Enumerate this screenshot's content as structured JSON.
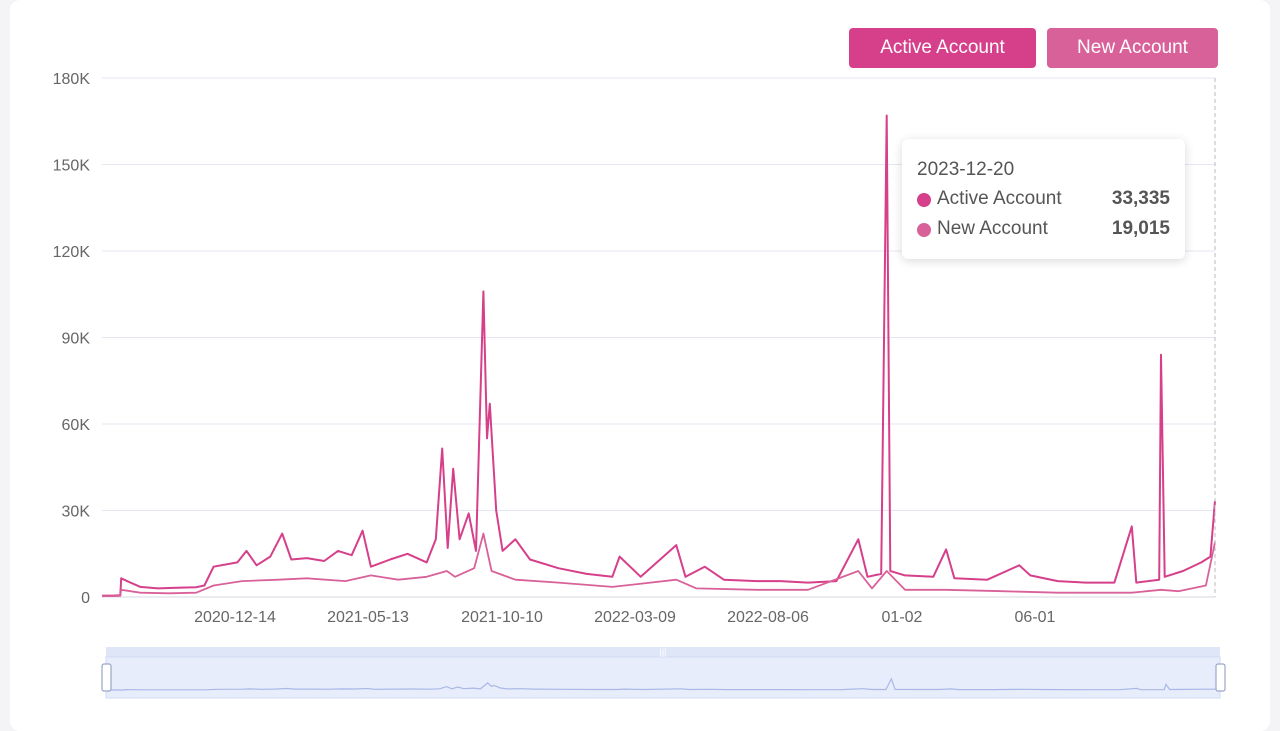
{
  "legend": {
    "active_label": "Active Account",
    "new_label": "New Account"
  },
  "colors": {
    "active": "#d63f8a",
    "new": "#d9619a",
    "grid": "#e4e6f0",
    "axis_text": "#666666",
    "zoom_fill": "#e3e9f9",
    "zoom_line": "#a9b8e8"
  },
  "tooltip": {
    "date": "2023-12-20",
    "active_label": "Active Account",
    "active_value": "33,335",
    "new_label": "New Account",
    "new_value": "19,015"
  },
  "chart_data": {
    "type": "line",
    "title": "",
    "xlabel": "",
    "ylabel": "",
    "ylim": [
      0,
      180000
    ],
    "y_ticks": [
      "0",
      "30K",
      "60K",
      "90K",
      "120K",
      "150K",
      "180K"
    ],
    "x_ticks": [
      "2020-12-14",
      "2021-05-13",
      "2021-10-10",
      "2022-03-09",
      "2022-08-06",
      "01-02",
      "06-01"
    ],
    "x_range": [
      "2020-08-20",
      "2023-12-20"
    ],
    "grid": true,
    "legend_position": "top-right",
    "series": [
      {
        "name": "Active Account",
        "color": "#d63f8a",
        "points": [
          [
            "2020-08-20",
            500
          ],
          [
            "2020-09-01",
            500
          ],
          [
            "2020-09-09",
            600
          ],
          [
            "2020-09-10",
            6500
          ],
          [
            "2020-09-20",
            5000
          ],
          [
            "2020-10-01",
            3500
          ],
          [
            "2020-10-20",
            3000
          ],
          [
            "2020-11-10",
            3200
          ],
          [
            "2020-12-01",
            3400
          ],
          [
            "2020-12-10",
            4000
          ],
          [
            "2020-12-20",
            10500
          ],
          [
            "2021-01-15",
            12000
          ],
          [
            "2021-01-25",
            16000
          ],
          [
            "2021-02-05",
            11000
          ],
          [
            "2021-02-20",
            14000
          ],
          [
            "2021-03-05",
            22000
          ],
          [
            "2021-03-15",
            13000
          ],
          [
            "2021-04-01",
            13500
          ],
          [
            "2021-04-20",
            12500
          ],
          [
            "2021-05-05",
            16000
          ],
          [
            "2021-05-20",
            14500
          ],
          [
            "2021-06-01",
            23000
          ],
          [
            "2021-06-10",
            10500
          ],
          [
            "2021-07-01",
            13000
          ],
          [
            "2021-07-20",
            15000
          ],
          [
            "2021-08-10",
            12000
          ],
          [
            "2021-08-20",
            20000
          ],
          [
            "2021-08-27",
            51500
          ],
          [
            "2021-09-02",
            17000
          ],
          [
            "2021-09-08",
            44500
          ],
          [
            "2021-09-15",
            20000
          ],
          [
            "2021-09-25",
            29000
          ],
          [
            "2021-10-03",
            16000
          ],
          [
            "2021-10-11",
            106000
          ],
          [
            "2021-10-15",
            55000
          ],
          [
            "2021-10-18",
            67000
          ],
          [
            "2021-10-25",
            30000
          ],
          [
            "2021-11-01",
            16000
          ],
          [
            "2021-11-15",
            20000
          ],
          [
            "2021-12-01",
            13000
          ],
          [
            "2022-01-01",
            10000
          ],
          [
            "2022-02-01",
            8000
          ],
          [
            "2022-03-01",
            7000
          ],
          [
            "2022-03-09",
            14000
          ],
          [
            "2022-04-01",
            7000
          ],
          [
            "2022-05-10",
            18000
          ],
          [
            "2022-05-20",
            7000
          ],
          [
            "2022-06-10",
            10500
          ],
          [
            "2022-07-01",
            6000
          ],
          [
            "2022-08-06",
            5500
          ],
          [
            "2022-09-01",
            5500
          ],
          [
            "2022-10-01",
            5000
          ],
          [
            "2022-11-01",
            5500
          ],
          [
            "2022-11-25",
            20000
          ],
          [
            "2022-12-05",
            7000
          ],
          [
            "2022-12-20",
            8000
          ],
          [
            "2022-12-26",
            167000
          ],
          [
            "2022-12-30",
            9000
          ],
          [
            "2023-01-15",
            7500
          ],
          [
            "2023-02-15",
            7000
          ],
          [
            "2023-03-01",
            16500
          ],
          [
            "2023-03-10",
            6500
          ],
          [
            "2023-04-15",
            6000
          ],
          [
            "2023-05-20",
            11000
          ],
          [
            "2023-06-01",
            7500
          ],
          [
            "2023-07-01",
            5500
          ],
          [
            "2023-08-01",
            5000
          ],
          [
            "2023-09-01",
            5000
          ],
          [
            "2023-09-20",
            24500
          ],
          [
            "2023-09-25",
            5000
          ],
          [
            "2023-10-20",
            6000
          ],
          [
            "2023-10-22",
            84000
          ],
          [
            "2023-10-26",
            7000
          ],
          [
            "2023-11-15",
            9000
          ],
          [
            "2023-12-05",
            12000
          ],
          [
            "2023-12-15",
            14000
          ],
          [
            "2023-12-20",
            33335
          ]
        ]
      },
      {
        "name": "New Account",
        "color": "#d9619a",
        "points": [
          [
            "2020-08-20",
            300
          ],
          [
            "2020-09-01",
            300
          ],
          [
            "2020-09-09",
            400
          ],
          [
            "2020-09-10",
            2500
          ],
          [
            "2020-10-01",
            1500
          ],
          [
            "2020-11-01",
            1300
          ],
          [
            "2020-12-01",
            1500
          ],
          [
            "2020-12-20",
            4000
          ],
          [
            "2021-01-20",
            5500
          ],
          [
            "2021-03-01",
            6000
          ],
          [
            "2021-04-01",
            6500
          ],
          [
            "2021-05-13",
            5500
          ],
          [
            "2021-06-10",
            7500
          ],
          [
            "2021-07-10",
            6000
          ],
          [
            "2021-08-10",
            7000
          ],
          [
            "2021-09-01",
            9000
          ],
          [
            "2021-09-10",
            7000
          ],
          [
            "2021-10-01",
            10000
          ],
          [
            "2021-10-11",
            22000
          ],
          [
            "2021-10-20",
            9000
          ],
          [
            "2021-11-15",
            6000
          ],
          [
            "2022-01-01",
            5000
          ],
          [
            "2022-03-01",
            3500
          ],
          [
            "2022-05-10",
            6000
          ],
          [
            "2022-06-01",
            3000
          ],
          [
            "2022-08-06",
            2500
          ],
          [
            "2022-10-01",
            2500
          ],
          [
            "2022-11-25",
            9000
          ],
          [
            "2022-12-10",
            3000
          ],
          [
            "2022-12-26",
            9000
          ],
          [
            "2023-01-15",
            2500
          ],
          [
            "2023-03-01",
            2500
          ],
          [
            "2023-05-01",
            2000
          ],
          [
            "2023-07-01",
            1500
          ],
          [
            "2023-09-20",
            1500
          ],
          [
            "2023-10-22",
            2500
          ],
          [
            "2023-11-10",
            2000
          ],
          [
            "2023-12-10",
            4000
          ],
          [
            "2023-12-20",
            19015
          ]
        ]
      }
    ]
  }
}
